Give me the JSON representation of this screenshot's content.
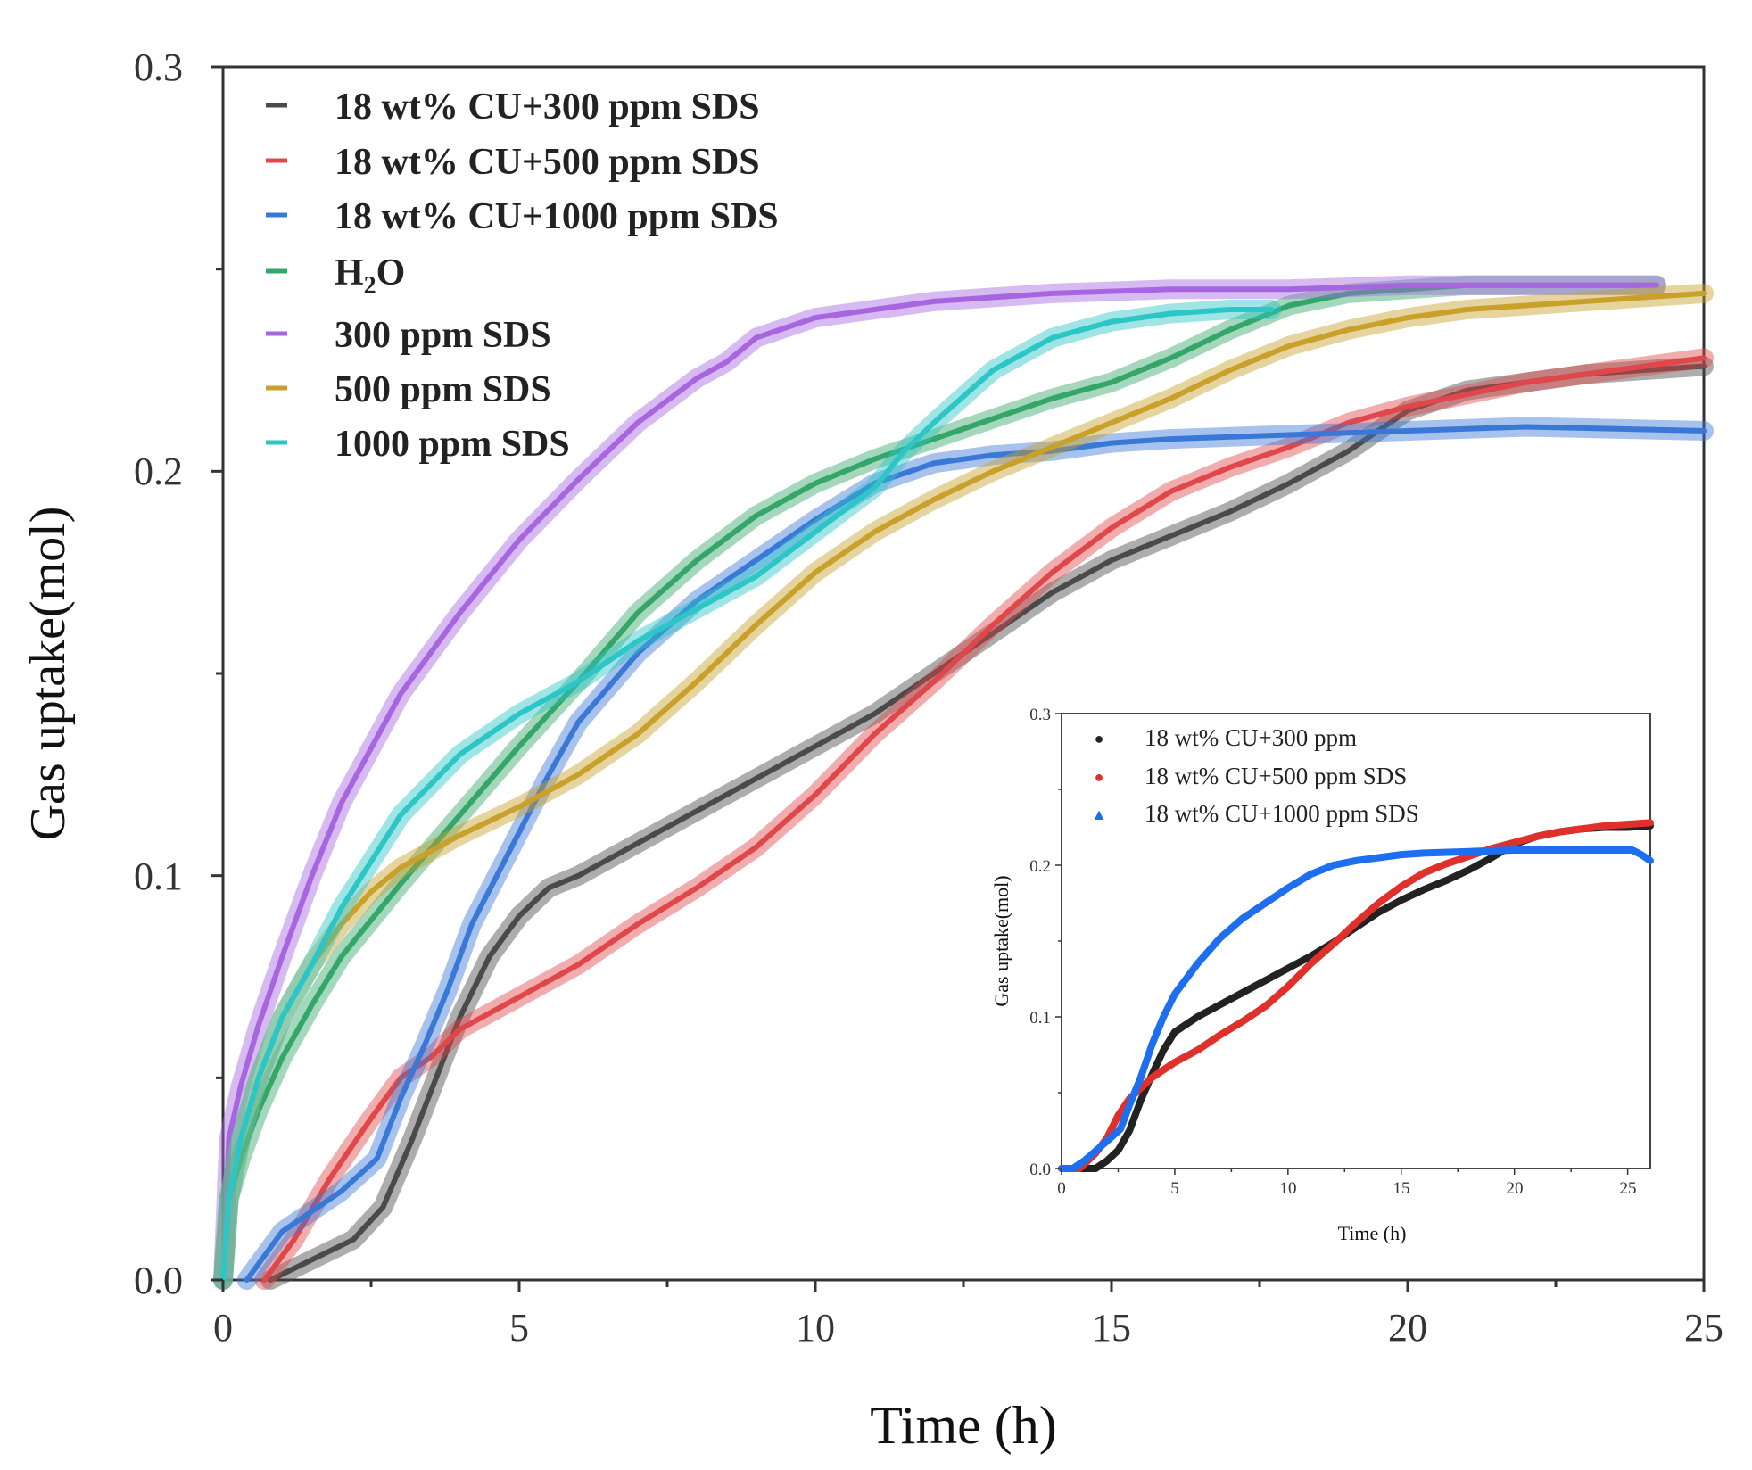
{
  "chart_data": [
    {
      "type": "line",
      "xlabel": "Time (h)",
      "ylabel": "Gas uptake(mol)",
      "xlim": [
        0,
        25
      ],
      "ylim": [
        0,
        0.3
      ],
      "xticks": [
        "0",
        "5",
        "10",
        "15",
        "20",
        "25"
      ],
      "yticks": [
        "0.0",
        "0.1",
        "0.2",
        "0.3"
      ],
      "grid": false,
      "legend_position": "top-left",
      "series": [
        {
          "name": "18 wt% CU+300 ppm SDS",
          "color": "#4a4a4a",
          "x": [
            0.8,
            1.5,
            2.2,
            2.7,
            3.2,
            3.6,
            4.0,
            4.5,
            5.0,
            5.5,
            6.0,
            7.0,
            8.0,
            9.0,
            10.0,
            11.0,
            12.0,
            13.0,
            14.0,
            15.0,
            16.0,
            17.0,
            18.0,
            19.0,
            20.0,
            21.0,
            22.0,
            23.0,
            24.0,
            25.0
          ],
          "y": [
            0.0,
            0.005,
            0.01,
            0.018,
            0.035,
            0.05,
            0.065,
            0.08,
            0.09,
            0.097,
            0.1,
            0.108,
            0.116,
            0.124,
            0.132,
            0.14,
            0.15,
            0.16,
            0.17,
            0.178,
            0.184,
            0.19,
            0.197,
            0.205,
            0.215,
            0.22,
            0.222,
            0.224,
            0.225,
            0.226
          ]
        },
        {
          "name": "18 wt% CU+500 ppm SDS",
          "color": "#e0474a",
          "x": [
            0.7,
            1.2,
            1.8,
            2.5,
            3.0,
            3.5,
            4.0,
            5.0,
            6.0,
            7.0,
            8.0,
            9.0,
            10.0,
            11.0,
            12.0,
            13.0,
            14.0,
            15.0,
            16.0,
            17.0,
            18.0,
            19.0,
            20.0,
            21.0,
            22.0,
            23.0,
            24.0,
            25.0
          ],
          "y": [
            0.0,
            0.01,
            0.025,
            0.04,
            0.05,
            0.055,
            0.062,
            0.07,
            0.078,
            0.088,
            0.097,
            0.107,
            0.12,
            0.135,
            0.148,
            0.162,
            0.175,
            0.186,
            0.195,
            0.201,
            0.206,
            0.212,
            0.216,
            0.219,
            0.222,
            0.224,
            0.226,
            0.228
          ]
        },
        {
          "name": "18 wt% CU+1000 ppm SDS",
          "color": "#3a78d8",
          "x": [
            0.4,
            1.0,
            2.0,
            2.6,
            3.0,
            3.4,
            3.8,
            4.2,
            4.8,
            5.5,
            6.0,
            7.0,
            8.0,
            9.0,
            10.0,
            11.0,
            12.0,
            13.0,
            14.0,
            15.0,
            16.0,
            18.0,
            20.0,
            22.0,
            25.0
          ],
          "y": [
            0.0,
            0.012,
            0.022,
            0.03,
            0.045,
            0.058,
            0.072,
            0.088,
            0.105,
            0.125,
            0.138,
            0.155,
            0.168,
            0.178,
            0.188,
            0.197,
            0.202,
            0.204,
            0.205,
            0.207,
            0.208,
            0.209,
            0.21,
            0.211,
            0.21
          ]
        },
        {
          "name": "H2O",
          "color": "#35a66a",
          "x": [
            0.0,
            0.1,
            0.3,
            0.6,
            1.0,
            1.5,
            2.0,
            3.0,
            4.0,
            5.0,
            6.0,
            7.0,
            8.0,
            9.0,
            10.0,
            11.0,
            12.0,
            13.0,
            14.0,
            15.0,
            16.0,
            17.0,
            18.0,
            19.0,
            20.0,
            21.0,
            22.0,
            23.0,
            24.2
          ],
          "y": [
            0.0,
            0.02,
            0.03,
            0.042,
            0.055,
            0.068,
            0.08,
            0.098,
            0.115,
            0.132,
            0.148,
            0.165,
            0.178,
            0.189,
            0.197,
            0.203,
            0.208,
            0.213,
            0.218,
            0.222,
            0.228,
            0.235,
            0.241,
            0.244,
            0.245,
            0.246,
            0.246,
            0.246,
            0.246
          ]
        },
        {
          "name": "300 ppm SDS",
          "color": "#a766e0",
          "x": [
            0.0,
            0.1,
            0.3,
            0.6,
            1.0,
            1.5,
            2.0,
            3.0,
            4.0,
            5.0,
            6.0,
            7.0,
            8.0,
            8.5,
            9.0,
            10.0,
            11.0,
            12.0,
            14.0,
            16.0,
            18.0,
            20.0,
            22.0,
            24.2
          ],
          "y": [
            0.0,
            0.035,
            0.048,
            0.063,
            0.08,
            0.1,
            0.118,
            0.145,
            0.165,
            0.183,
            0.198,
            0.212,
            0.223,
            0.227,
            0.233,
            0.238,
            0.24,
            0.242,
            0.244,
            0.245,
            0.245,
            0.246,
            0.246,
            0.246
          ]
        },
        {
          "name": "500 ppm SDS",
          "color": "#c8a02a",
          "x": [
            0.0,
            0.1,
            0.3,
            0.6,
            1.0,
            1.5,
            2.0,
            2.5,
            3.0,
            4.0,
            5.0,
            6.0,
            7.0,
            8.0,
            9.0,
            10.0,
            11.0,
            12.0,
            13.0,
            14.0,
            15.0,
            16.0,
            17.0,
            18.0,
            19.0,
            20.0,
            21.0,
            22.0,
            23.0,
            24.0,
            25.0
          ],
          "y": [
            0.0,
            0.02,
            0.035,
            0.05,
            0.065,
            0.078,
            0.088,
            0.096,
            0.102,
            0.11,
            0.117,
            0.125,
            0.135,
            0.148,
            0.162,
            0.175,
            0.185,
            0.193,
            0.2,
            0.206,
            0.212,
            0.218,
            0.225,
            0.231,
            0.235,
            0.238,
            0.24,
            0.241,
            0.242,
            0.243,
            0.244
          ]
        },
        {
          "name": "1000 ppm SDS",
          "color": "#2cc6c6",
          "x": [
            0.0,
            0.1,
            0.3,
            0.6,
            1.0,
            1.5,
            2.0,
            3.0,
            4.0,
            5.0,
            6.0,
            7.0,
            8.0,
            9.0,
            10.0,
            11.0,
            11.5,
            12.0,
            13.0,
            14.0,
            15.0,
            16.0,
            17.0,
            17.7
          ],
          "y": [
            0.0,
            0.02,
            0.035,
            0.05,
            0.065,
            0.078,
            0.092,
            0.115,
            0.13,
            0.14,
            0.148,
            0.158,
            0.166,
            0.174,
            0.185,
            0.196,
            0.205,
            0.212,
            0.225,
            0.233,
            0.237,
            0.239,
            0.24,
            0.24
          ]
        }
      ]
    },
    {
      "type": "line",
      "xlabel": "Time (h)",
      "ylabel": "Gas uptake(mol)",
      "xlim": [
        0,
        26
      ],
      "ylim": [
        0,
        0.3
      ],
      "xticks": [
        "0",
        "5",
        "10",
        "15",
        "20",
        "25"
      ],
      "yticks": [
        "0.0",
        "0.1",
        "0.2",
        "0.3"
      ],
      "grid": false,
      "legend_position": "top-left",
      "series": [
        {
          "name": "18 wt% CU+300 ppm",
          "color": "#222222",
          "marker": "circle",
          "x": [
            0.0,
            1.5,
            2.0,
            2.5,
            3.0,
            3.5,
            4.0,
            4.5,
            5.0,
            6.0,
            7.0,
            8.0,
            9.0,
            10.0,
            11.0,
            12.0,
            13.0,
            14.0,
            15.0,
            16.0,
            17.0,
            18.0,
            19.0,
            20.0,
            21.0,
            22.0,
            23.0,
            24.0,
            25.0,
            26.0
          ],
          "y": [
            0.0,
            0.0,
            0.005,
            0.012,
            0.025,
            0.045,
            0.062,
            0.078,
            0.09,
            0.1,
            0.108,
            0.116,
            0.124,
            0.132,
            0.14,
            0.149,
            0.159,
            0.169,
            0.177,
            0.184,
            0.19,
            0.197,
            0.205,
            0.214,
            0.219,
            0.222,
            0.224,
            0.225,
            0.225,
            0.226
          ]
        },
        {
          "name": "18 wt% CU+500 ppm SDS",
          "color": "#e0302c",
          "marker": "circle",
          "x": [
            0.0,
            0.8,
            1.5,
            2.0,
            2.5,
            3.0,
            3.5,
            4.0,
            5.0,
            6.0,
            7.0,
            8.0,
            9.0,
            10.0,
            11.0,
            12.0,
            13.0,
            14.0,
            15.0,
            16.0,
            17.0,
            18.0,
            19.0,
            20.0,
            21.0,
            22.0,
            23.0,
            24.0,
            25.0,
            26.0
          ],
          "y": [
            0.0,
            0.0,
            0.01,
            0.02,
            0.035,
            0.046,
            0.053,
            0.06,
            0.07,
            0.078,
            0.088,
            0.097,
            0.107,
            0.12,
            0.135,
            0.148,
            0.162,
            0.175,
            0.186,
            0.195,
            0.201,
            0.206,
            0.211,
            0.215,
            0.219,
            0.222,
            0.224,
            0.226,
            0.227,
            0.228
          ]
        },
        {
          "name": "18 wt% CU+1000 ppm SDS",
          "color": "#1e6ff0",
          "marker": "triangle",
          "x": [
            0.0,
            0.5,
            1.0,
            2.0,
            2.6,
            3.0,
            3.5,
            4.0,
            4.5,
            5.0,
            6.0,
            7.0,
            8.0,
            9.0,
            10.0,
            11.0,
            12.0,
            13.0,
            14.0,
            15.0,
            16.0,
            18.0,
            20.0,
            22.0,
            24.0,
            25.2,
            25.6,
            26.0
          ],
          "y": [
            0.0,
            0.0,
            0.005,
            0.018,
            0.026,
            0.042,
            0.06,
            0.082,
            0.1,
            0.115,
            0.135,
            0.152,
            0.165,
            0.175,
            0.185,
            0.194,
            0.2,
            0.203,
            0.205,
            0.207,
            0.208,
            0.209,
            0.21,
            0.21,
            0.21,
            0.21,
            0.207,
            0.203
          ]
        }
      ]
    }
  ],
  "legend_symbol": "—",
  "inset_legend_symbols": [
    "●",
    "●",
    "▲"
  ]
}
